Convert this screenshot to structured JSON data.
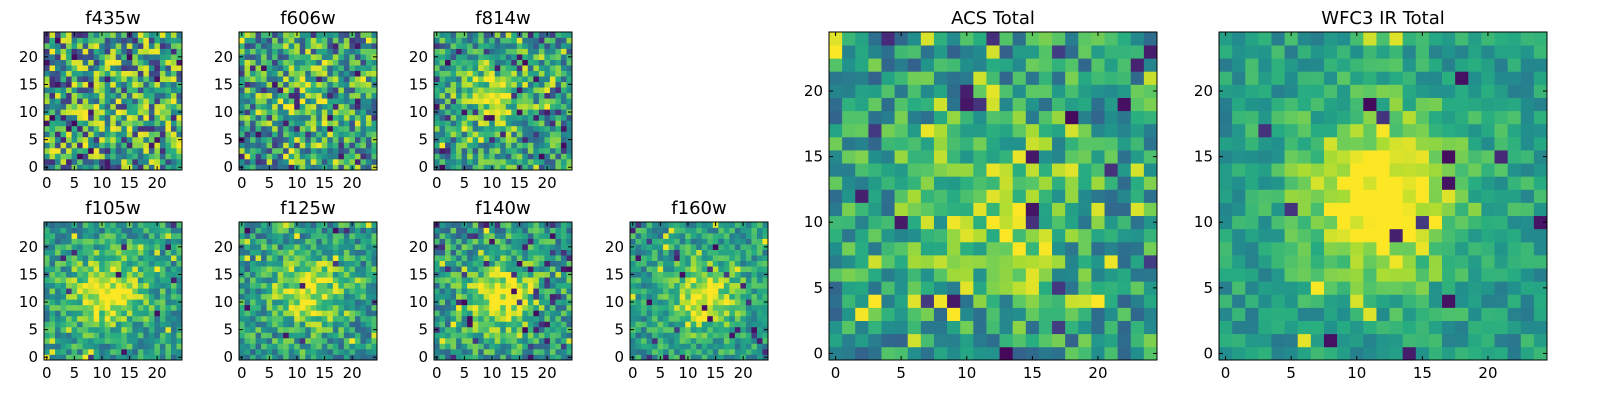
{
  "chart_data": [
    {
      "type": "heatmap",
      "title": "f435w",
      "grid_size": 25,
      "xlim": [
        0,
        24
      ],
      "ylim": [
        0,
        24
      ],
      "xticks": [
        "0",
        "5",
        "10",
        "15",
        "20"
      ],
      "yticks": [
        "0",
        "5",
        "10",
        "15",
        "20"
      ],
      "colormap": "viridis",
      "seed": 11,
      "peak": [
        12,
        12
      ],
      "peak_strength": 0.05,
      "noise": 0.85,
      "lows": 0.06,
      "highs": 0.08
    },
    {
      "type": "heatmap",
      "title": "f606w",
      "grid_size": 25,
      "xlim": [
        0,
        24
      ],
      "ylim": [
        0,
        24
      ],
      "xticks": [
        "0",
        "5",
        "10",
        "15",
        "20"
      ],
      "yticks": [
        "0",
        "5",
        "10",
        "15",
        "20"
      ],
      "colormap": "viridis",
      "seed": 23,
      "peak": [
        12,
        12
      ],
      "peak_strength": 0.2,
      "noise": 0.7,
      "lows": 0.05,
      "highs": 0.07
    },
    {
      "type": "heatmap",
      "title": "f814w",
      "grid_size": 25,
      "xlim": [
        0,
        24
      ],
      "ylim": [
        0,
        24
      ],
      "xticks": [
        "0",
        "5",
        "10",
        "15",
        "20"
      ],
      "yticks": [
        "0",
        "5",
        "10",
        "15",
        "20"
      ],
      "colormap": "viridis",
      "seed": 37,
      "peak": [
        11,
        13
      ],
      "peak_strength": 0.3,
      "noise": 0.6,
      "lows": 0.06,
      "highs": 0.03
    },
    {
      "type": "heatmap",
      "title": "f105w",
      "grid_size": 25,
      "xlim": [
        0,
        24
      ],
      "ylim": [
        0,
        24
      ],
      "xticks": [
        "0",
        "5",
        "10",
        "15",
        "20"
      ],
      "yticks": [
        "0",
        "5",
        "10",
        "15",
        "20"
      ],
      "colormap": "viridis",
      "seed": 41,
      "peak": [
        11,
        12
      ],
      "peak_strength": 0.45,
      "noise": 0.45,
      "lows": 0.015,
      "highs": 0.02
    },
    {
      "type": "heatmap",
      "title": "f125w",
      "grid_size": 25,
      "xlim": [
        0,
        24
      ],
      "ylim": [
        0,
        24
      ],
      "xticks": [
        "0",
        "5",
        "10",
        "15",
        "20"
      ],
      "yticks": [
        "0",
        "5",
        "10",
        "15",
        "20"
      ],
      "colormap": "viridis",
      "seed": 53,
      "peak": [
        12,
        12
      ],
      "peak_strength": 0.4,
      "noise": 0.5,
      "lows": 0.025,
      "highs": 0.02
    },
    {
      "type": "heatmap",
      "title": "f140w",
      "grid_size": 25,
      "xlim": [
        0,
        24
      ],
      "ylim": [
        0,
        24
      ],
      "xticks": [
        "0",
        "5",
        "10",
        "15",
        "20"
      ],
      "yticks": [
        "0",
        "5",
        "10",
        "15",
        "20"
      ],
      "colormap": "viridis",
      "seed": 67,
      "peak": [
        12,
        11
      ],
      "peak_strength": 0.45,
      "noise": 0.5,
      "lows": 0.06,
      "highs": 0.03
    },
    {
      "type": "heatmap",
      "title": "f160w",
      "grid_size": 25,
      "xlim": [
        0,
        24
      ],
      "ylim": [
        0,
        24
      ],
      "xticks": [
        "0",
        "5",
        "10",
        "15",
        "20"
      ],
      "yticks": [
        "0",
        "5",
        "10",
        "15",
        "20"
      ],
      "colormap": "viridis",
      "seed": 79,
      "peak": [
        13,
        11
      ],
      "peak_strength": 0.4,
      "noise": 0.4,
      "lows": 0.05,
      "highs": 0.02
    },
    {
      "type": "heatmap",
      "title": "ACS Total",
      "grid_size": 25,
      "xlim": [
        0,
        24
      ],
      "ylim": [
        0,
        24
      ],
      "xticks": [
        "0",
        "5",
        "10",
        "15",
        "20"
      ],
      "yticks": [
        "0",
        "5",
        "10",
        "15",
        "20"
      ],
      "colormap": "viridis",
      "seed": 97,
      "peak": [
        12,
        11
      ],
      "peak_strength": 0.3,
      "noise": 0.5,
      "lows": 0.04,
      "highs": 0.05
    },
    {
      "type": "heatmap",
      "title": "WFC3 IR Total",
      "grid_size": 25,
      "xlim": [
        0,
        24
      ],
      "ylim": [
        0,
        24
      ],
      "xticks": [
        "0",
        "5",
        "10",
        "15",
        "20"
      ],
      "yticks": [
        "0",
        "5",
        "10",
        "15",
        "20"
      ],
      "colormap": "viridis",
      "seed": 131,
      "peak": [
        12,
        12
      ],
      "peak_strength": 0.55,
      "noise": 0.3,
      "lows": 0.03,
      "highs": 0.015
    }
  ]
}
